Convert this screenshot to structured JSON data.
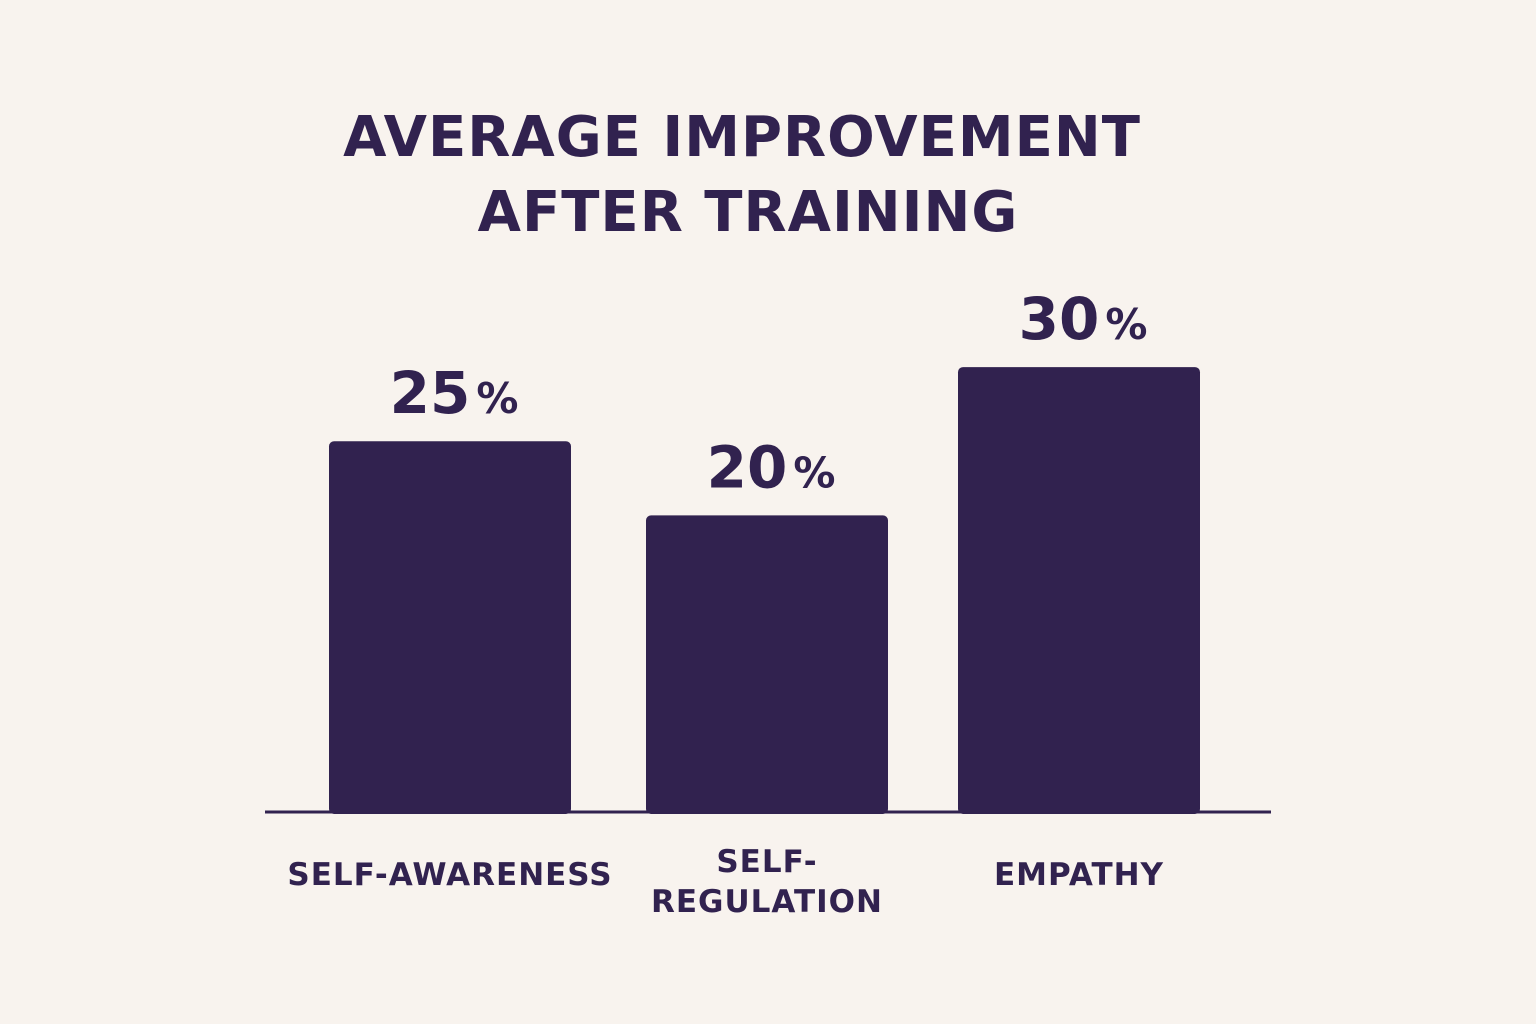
{
  "colors": {
    "background": "#f8f3ee",
    "bar": "#31224f",
    "text": "#31224f"
  },
  "chart_data": {
    "type": "bar",
    "title": "AVERAGE IMPROVEMENT AFTER TRAINING",
    "title_lines": [
      "AVERAGE IMPROVEMENT",
      "AFTER TRAINING"
    ],
    "categories": [
      "SELF-AWARENESS",
      "SELF-REGULATION",
      "EMPATHY"
    ],
    "category_lines": [
      [
        "SELF-AWARENESS"
      ],
      [
        "SELF-",
        "REGULATION"
      ],
      [
        "EMPATHY"
      ]
    ],
    "values": [
      25,
      20,
      30
    ],
    "value_numbers": [
      "25",
      "20",
      "30"
    ],
    "value_unit": "%",
    "ylim": [
      0,
      32.5
    ],
    "grid": false,
    "legend": "none"
  }
}
